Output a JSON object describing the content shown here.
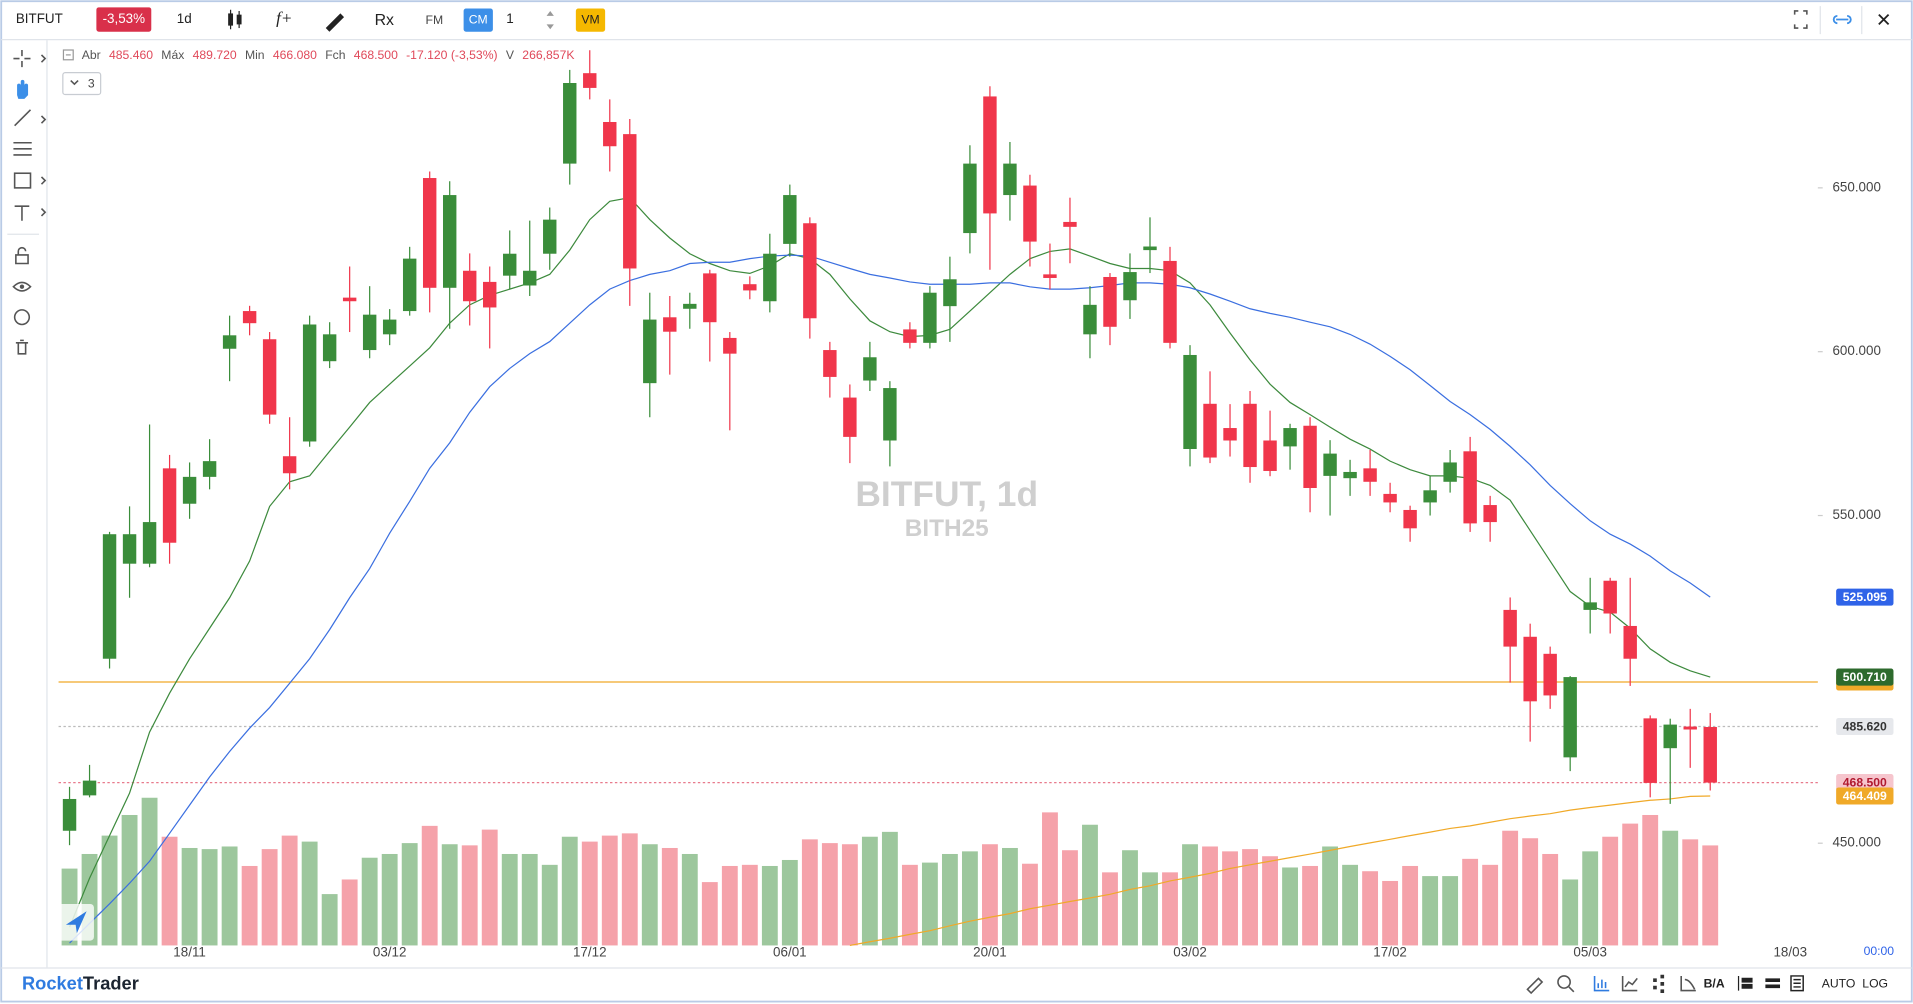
{
  "toolbar": {
    "symbol": "BITFUT",
    "change": "-3,53%",
    "interval": "1d",
    "formula": "f+",
    "fm": "FM",
    "rx": "Rx",
    "cm": "CM",
    "quantity": "1",
    "vm": "VM"
  },
  "legend": {
    "items": [
      {
        "label": "Abr",
        "value": "485.460"
      },
      {
        "label": "Máx",
        "value": "489.720"
      },
      {
        "label": "Min",
        "value": "466.080"
      },
      {
        "label": "Fch",
        "value": "468.500"
      }
    ],
    "change": "-17.120 (-3,53%)",
    "volume_label": "V",
    "volume": "266,857K"
  },
  "indicators_count": "3",
  "footer": {
    "brand_1": "Rocket",
    "brand_2": "Trader",
    "ba": "B/A",
    "auto": "AUTO",
    "log": "LOG"
  },
  "chart_data": {
    "type": "candlestick",
    "title": "BITFUT, 1d",
    "subtitle": "BITH25",
    "time_label": "00:00",
    "up_color": "#3a8d3a",
    "down_color": "#f0364b",
    "volume_up_color": "#9dc79d",
    "volume_down_color": "#f5a2aa",
    "grid": false,
    "ylim": [
      418.8,
      694.3
    ],
    "yticks": [
      {
        "value": 450,
        "label": "450.000"
      },
      {
        "value": 550,
        "label": "550.000"
      },
      {
        "value": 600,
        "label": "600.000"
      },
      {
        "value": 650,
        "label": "650.000"
      }
    ],
    "categories": [
      null,
      null,
      null,
      null,
      null,
      null,
      "18/11",
      null,
      null,
      null,
      null,
      null,
      null,
      null,
      null,
      null,
      "03/12",
      null,
      null,
      null,
      null,
      null,
      null,
      null,
      null,
      null,
      "17/12",
      null,
      null,
      null,
      null,
      null,
      null,
      null,
      null,
      null,
      "06/01",
      null,
      null,
      null,
      null,
      null,
      null,
      null,
      null,
      null,
      "20/01",
      null,
      null,
      null,
      null,
      null,
      null,
      null,
      null,
      null,
      "03/02",
      null,
      null,
      null,
      null,
      null,
      null,
      null,
      null,
      null,
      "17/02",
      null,
      null,
      null,
      null,
      null,
      null,
      null,
      null,
      null,
      "05/03",
      null,
      null,
      null,
      null,
      null,
      null,
      null,
      null,
      null,
      "18/03"
    ],
    "open": [
      453.8,
      464.6,
      506.3,
      535.3,
      535.3,
      564.4,
      553.6,
      561.8,
      600.9,
      612.4,
      603.8,
      568.1,
      572.6,
      597.1,
      616.5,
      600.5,
      605.3,
      612.4,
      653,
      619.5,
      624.7,
      621.3,
      623.2,
      620.2,
      629.9,
      657.4,
      685,
      670.1,
      666.4,
      590.4,
      610.5,
      613.1,
      623.9,
      604.2,
      620.6,
      615.4,
      632.9,
      639.2,
      600.5,
      586,
      591.2,
      572.9,
      606.8,
      602.7,
      613.9,
      636.2,
      677.9,
      647.8,
      650.7,
      623.6,
      639.6,
      605.3,
      622.8,
      615.7,
      631,
      627.7,
      570.3,
      584.1,
      576.7,
      584.1,
      572.9,
      571.1,
      577.4,
      562.1,
      561.4,
      564.4,
      556.6,
      551.7,
      554,
      560.3,
      569.6,
      553.2,
      521.2,
      513,
      507.8,
      476.2,
      521.2,
      530.1,
      516.3,
      488.1,
      479,
      485.6,
      485.46,
      null,
      null,
      null,
      null
    ],
    "high": [
      467.2,
      473.9,
      545,
      552.8,
      577.8,
      568.5,
      566.2,
      573.3,
      611,
      614,
      606,
      580,
      611,
      609,
      626,
      620,
      613,
      632,
      655,
      652,
      630,
      626,
      637,
      640,
      644,
      686,
      692,
      677,
      671,
      618,
      617,
      618,
      625,
      606,
      623,
      636,
      651,
      641,
      603,
      590,
      603,
      591,
      609,
      620,
      629,
      663,
      681,
      664,
      654,
      633,
      647,
      620,
      624,
      630,
      641,
      632,
      602,
      594,
      584,
      588,
      582,
      578,
      580,
      573,
      567,
      570,
      560,
      553,
      562,
      570,
      574,
      556,
      525,
      517,
      510,
      501,
      531,
      531,
      531,
      489,
      488,
      491,
      489.72,
      null,
      null,
      null,
      null
    ],
    "low": [
      449.4,
      464,
      503.3,
      524.9,
      534.2,
      535.3,
      549,
      558,
      591,
      605,
      578,
      558,
      571,
      595,
      606,
      598,
      602,
      611,
      612,
      607,
      608,
      601,
      619,
      617,
      625,
      651,
      677,
      655,
      614,
      580,
      593,
      607,
      597,
      576,
      616,
      612,
      629,
      604,
      586,
      566,
      588,
      565,
      601,
      601,
      603,
      630,
      625,
      640,
      626,
      619,
      627,
      598,
      602,
      610,
      624,
      601,
      565,
      566,
      568,
      560,
      562,
      564,
      551,
      550,
      556,
      556,
      551,
      542,
      550,
      557,
      545,
      542,
      499,
      481,
      491,
      472,
      514,
      514,
      498,
      464,
      462,
      473,
      466.08,
      null,
      null,
      null,
      null
    ],
    "close": [
      463.5,
      469.1,
      544.3,
      544.3,
      548,
      541.7,
      561.8,
      566.6,
      605,
      608.7,
      580.8,
      562.9,
      608.3,
      605.3,
      615.4,
      611.3,
      609.8,
      628.4,
      619.5,
      647.8,
      615.4,
      613.5,
      629.9,
      624.7,
      640.3,
      682,
      680.5,
      662.7,
      625.4,
      609.8,
      606.1,
      614.6,
      609,
      599.4,
      618.7,
      629.9,
      647.8,
      610.2,
      592.3,
      574,
      598.3,
      588.9,
      602.7,
      618,
      622.1,
      657.4,
      642.2,
      657.4,
      633.6,
      622.5,
      638.1,
      614.3,
      607.6,
      624.3,
      632.1,
      602.7,
      599,
      567.7,
      572.9,
      564.8,
      563.6,
      576.7,
      558.4,
      568.9,
      563.3,
      560.3,
      554,
      546.1,
      557.7,
      566.2,
      547.6,
      548,
      510,
      493.3,
      495.1,
      500.7,
      523.5,
      520.1,
      506.3,
      468.4,
      486.2,
      484.7,
      468.5,
      null,
      null,
      null,
      null
    ],
    "volume": [
      205,
      244,
      293,
      348,
      394,
      290,
      260,
      257,
      264,
      212,
      257,
      293,
      277,
      137,
      176,
      234,
      244,
      273,
      319,
      270,
      267,
      309,
      244,
      244,
      215,
      290,
      277,
      293,
      299,
      270,
      260,
      244,
      169,
      212,
      215,
      212,
      228,
      283,
      273,
      270,
      290,
      303,
      215,
      221,
      244,
      251,
      270,
      260,
      218,
      355,
      254,
      322,
      195,
      254,
      195,
      195,
      270,
      264,
      251,
      257,
      238,
      208,
      212,
      264,
      215,
      198,
      172,
      212,
      185,
      185,
      231,
      215,
      306,
      286,
      244,
      176,
      251,
      290,
      325,
      348,
      306,
      283,
      266.857,
      null,
      null,
      null,
      null
    ],
    "overlays": [
      {
        "color": "#3d8a3d",
        "values": [
          424.4,
          439.3,
          452.3,
          465.3,
          483.9,
          495.8,
          506.3,
          515.6,
          524.9,
          536.1,
          552.8,
          560.3,
          562.1,
          569.6,
          577,
          584.5,
          590.1,
          595.6,
          601.2,
          608.7,
          614.3,
          617.2,
          619.1,
          621,
          623.6,
          631,
          640.3,
          645.9,
          647,
          640.3,
          634.7,
          629.9,
          626.9,
          624.7,
          623.9,
          626.2,
          629.9,
          628.4,
          623.6,
          616.1,
          609.4,
          606.1,
          604.6,
          605,
          606.8,
          612.4,
          618,
          623.6,
          628.4,
          630.6,
          631.4,
          629.2,
          626.9,
          625.4,
          625.4,
          624.7,
          621,
          614.3,
          605.7,
          597.5,
          590.1,
          584.5,
          580.8,
          577,
          573.3,
          570.3,
          566.6,
          564,
          562.1,
          562.1,
          561.4,
          559.2,
          554.7,
          545.4,
          536.1,
          526.8,
          522.3,
          520.5,
          515.6,
          509.3,
          505.2,
          502.6,
          500.71,
          null,
          null,
          null,
          null
        ]
      },
      {
        "color": "#3b6fe0",
        "values": [
          419.5,
          425.5,
          431.5,
          437.8,
          444.5,
          453,
          461.6,
          470.2,
          478,
          485.1,
          491.4,
          498.8,
          506.3,
          515.2,
          524.9,
          533.8,
          544.6,
          554.3,
          564.4,
          572.2,
          581.5,
          589.3,
          594.9,
          599.4,
          603.1,
          608.7,
          614.3,
          619.1,
          621.7,
          623.6,
          624.7,
          626.9,
          627.3,
          627.3,
          628.4,
          629.2,
          629.5,
          629.2,
          627.3,
          625.4,
          623.6,
          622.5,
          621.3,
          620.6,
          620.6,
          620.6,
          621,
          621,
          619.8,
          619.1,
          619.1,
          619.5,
          620.2,
          621,
          621,
          620.6,
          619.5,
          617.6,
          615.4,
          613.1,
          611.7,
          610.5,
          609,
          607.6,
          605.3,
          602.3,
          598.6,
          594.5,
          589.7,
          584.8,
          580.8,
          576.3,
          571.1,
          565.5,
          559.2,
          553.6,
          548.4,
          544.3,
          541.3,
          537.6,
          533.1,
          529.4,
          525.095,
          null,
          null,
          null,
          null
        ]
      },
      {
        "color": "#f0a928",
        "values": [
          null,
          null,
          null,
          null,
          null,
          null,
          null,
          null,
          null,
          null,
          null,
          null,
          null,
          null,
          null,
          null,
          null,
          null,
          null,
          null,
          null,
          null,
          null,
          null,
          null,
          null,
          null,
          null,
          null,
          null,
          null,
          null,
          null,
          null,
          null,
          null,
          null,
          null,
          null,
          418.8,
          419.9,
          421,
          422.2,
          423.3,
          424.8,
          426.2,
          427.4,
          428.5,
          430,
          431.1,
          432.2,
          433.3,
          434.4,
          435.9,
          437,
          438.5,
          439.6,
          440.8,
          442.3,
          443.4,
          444.5,
          445.6,
          446.7,
          447.8,
          449,
          450.1,
          451.2,
          452.3,
          453.4,
          454.5,
          455.3,
          456.4,
          457.5,
          458.3,
          459,
          460.1,
          460.9,
          461.6,
          462.4,
          463.1,
          463.5,
          464.3,
          464.409,
          null,
          null,
          null,
          null
        ]
      }
    ],
    "hlines": [
      {
        "value": 499.2,
        "color": "#f0a928",
        "dash": false
      },
      {
        "value": 485.62,
        "color": "#bbbbbb",
        "dash": true
      },
      {
        "value": 468.5,
        "color": "#e87a8c",
        "dash": true
      }
    ],
    "price_labels": [
      {
        "value": 499.2,
        "background": "#f0a928",
        "text_color": "#f0a928"
      },
      {
        "value": 525.095,
        "background": "#2f63e8",
        "text_color": "#ffffff"
      },
      {
        "value": 500.71,
        "label": "500.710",
        "background": "#2d6a2d",
        "text_color": "#ffffff"
      },
      {
        "value": 485.62,
        "label": "485.620",
        "background": "#e6e8ec",
        "text_color": "#333333"
      },
      {
        "value": 468.5,
        "label": "468.500",
        "background": "#f6c5cd",
        "text_color": "#b01a30"
      },
      {
        "value": 464.409,
        "background": "#f0a928",
        "text_color": "#ffffff"
      }
    ]
  }
}
